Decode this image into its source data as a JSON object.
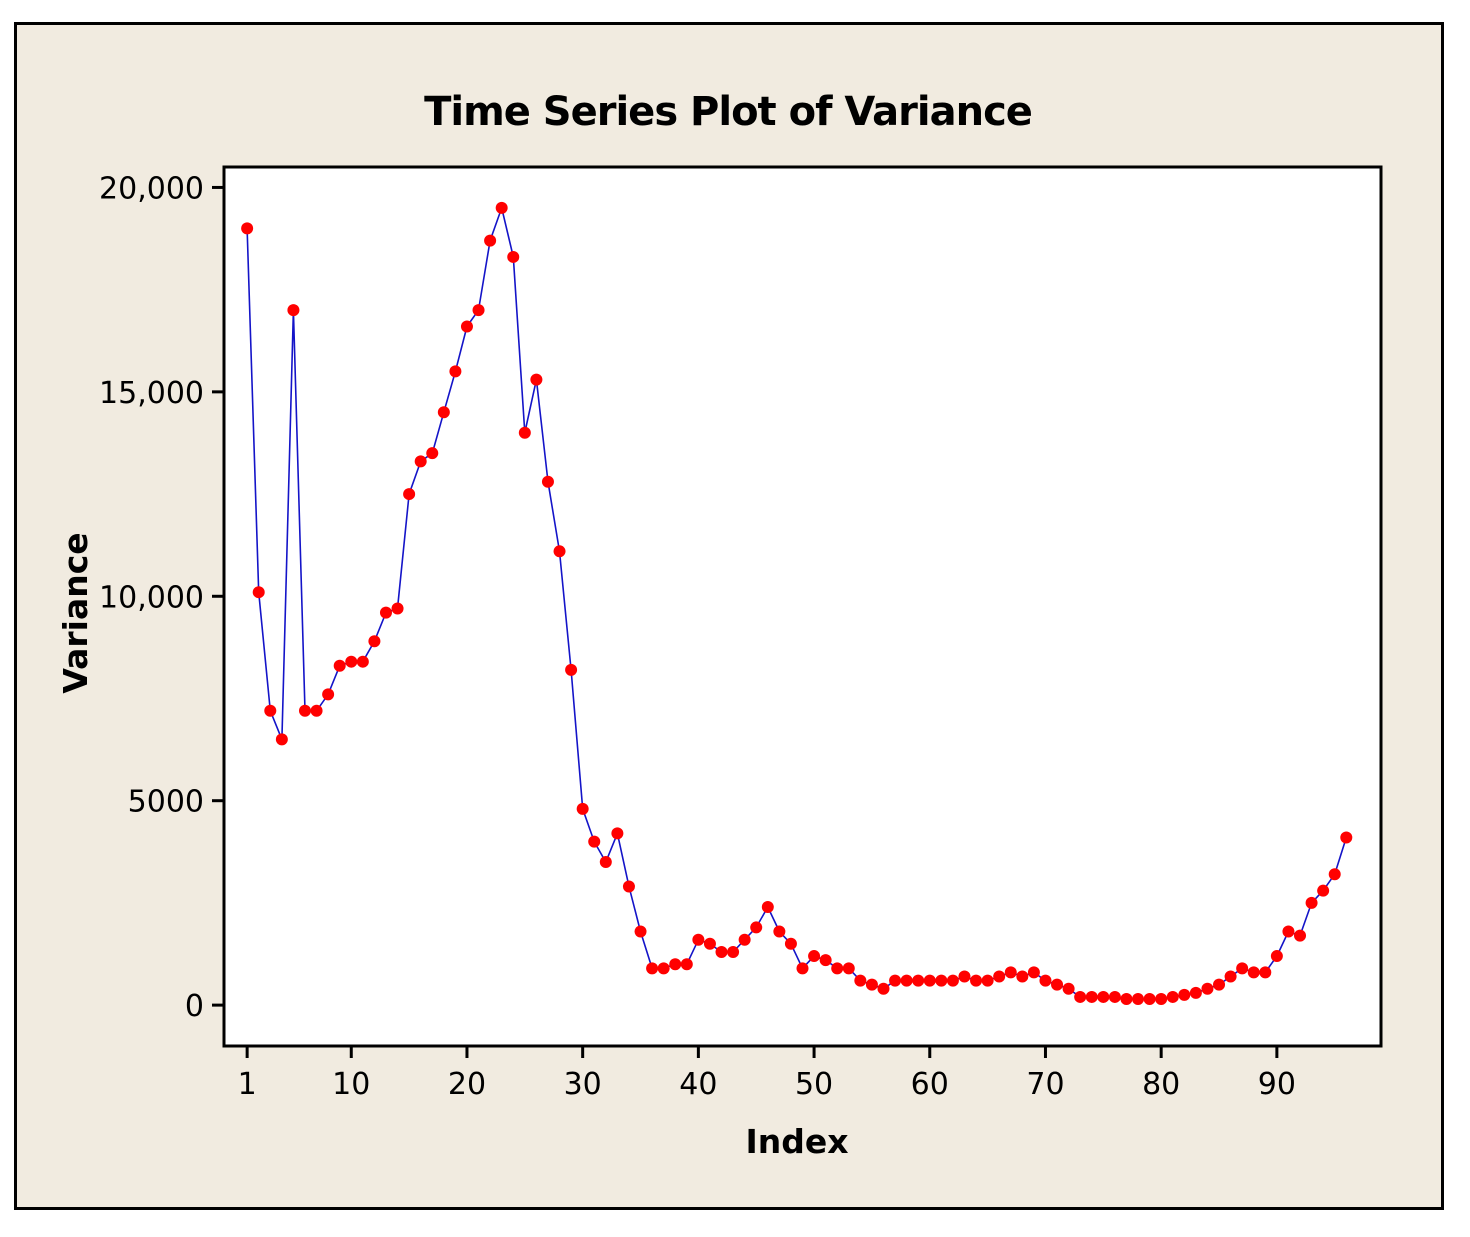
{
  "chart_data": {
    "type": "line",
    "title": "Time Series Plot of Variance",
    "xlabel": "Index",
    "ylabel": "Variance",
    "xlim": [
      -1,
      99
    ],
    "ylim": [
      -1000,
      20500
    ],
    "x_ticks": [
      1,
      10,
      20,
      30,
      40,
      50,
      60,
      70,
      80,
      90
    ],
    "x_tick_labels": [
      "1",
      "10",
      "20",
      "30",
      "40",
      "50",
      "60",
      "70",
      "80",
      "90"
    ],
    "y_ticks": [
      0,
      5000,
      10000,
      15000,
      20000
    ],
    "y_tick_labels": [
      "0",
      "5000",
      "10,000",
      "15,000",
      "20,000"
    ],
    "line_color": "#1414c8",
    "marker_color": "#ff0000",
    "series": [
      {
        "name": "Variance",
        "x": [
          1,
          2,
          3,
          4,
          5,
          6,
          7,
          8,
          9,
          10,
          11,
          12,
          13,
          14,
          15,
          16,
          17,
          18,
          19,
          20,
          21,
          22,
          23,
          24,
          25,
          26,
          27,
          28,
          29,
          30,
          31,
          32,
          33,
          34,
          35,
          36,
          37,
          38,
          39,
          40,
          41,
          42,
          43,
          44,
          45,
          46,
          47,
          48,
          49,
          50,
          51,
          52,
          53,
          54,
          55,
          56,
          57,
          58,
          59,
          60,
          61,
          62,
          63,
          64,
          65,
          66,
          67,
          68,
          69,
          70,
          71,
          72,
          73,
          74,
          75,
          76,
          77,
          78,
          79,
          80,
          81,
          82,
          83,
          84,
          85,
          86,
          87,
          88,
          89,
          90,
          91,
          92,
          93,
          94,
          95,
          96
        ],
        "values": [
          19000,
          10100,
          7200,
          6500,
          17000,
          7200,
          7200,
          7600,
          8300,
          8400,
          8400,
          8900,
          9600,
          9700,
          12500,
          13300,
          13500,
          14500,
          15500,
          16600,
          17000,
          18700,
          19500,
          18300,
          14000,
          15300,
          12800,
          11100,
          8200,
          4800,
          4000,
          3500,
          4200,
          2900,
          1800,
          900,
          900,
          1000,
          1000,
          1600,
          1500,
          1300,
          1300,
          1600,
          1900,
          2400,
          1800,
          1500,
          900,
          1200,
          1100,
          900,
          900,
          600,
          500,
          400,
          600,
          600,
          600,
          600,
          600,
          600,
          700,
          600,
          600,
          700,
          800,
          700,
          800,
          600,
          500,
          400,
          200,
          200,
          200,
          200,
          150,
          150,
          150,
          150,
          200,
          250,
          300,
          400,
          500,
          700,
          900,
          800,
          800,
          1200,
          1800,
          1700,
          2500,
          2800,
          3200,
          4100
        ]
      }
    ]
  }
}
